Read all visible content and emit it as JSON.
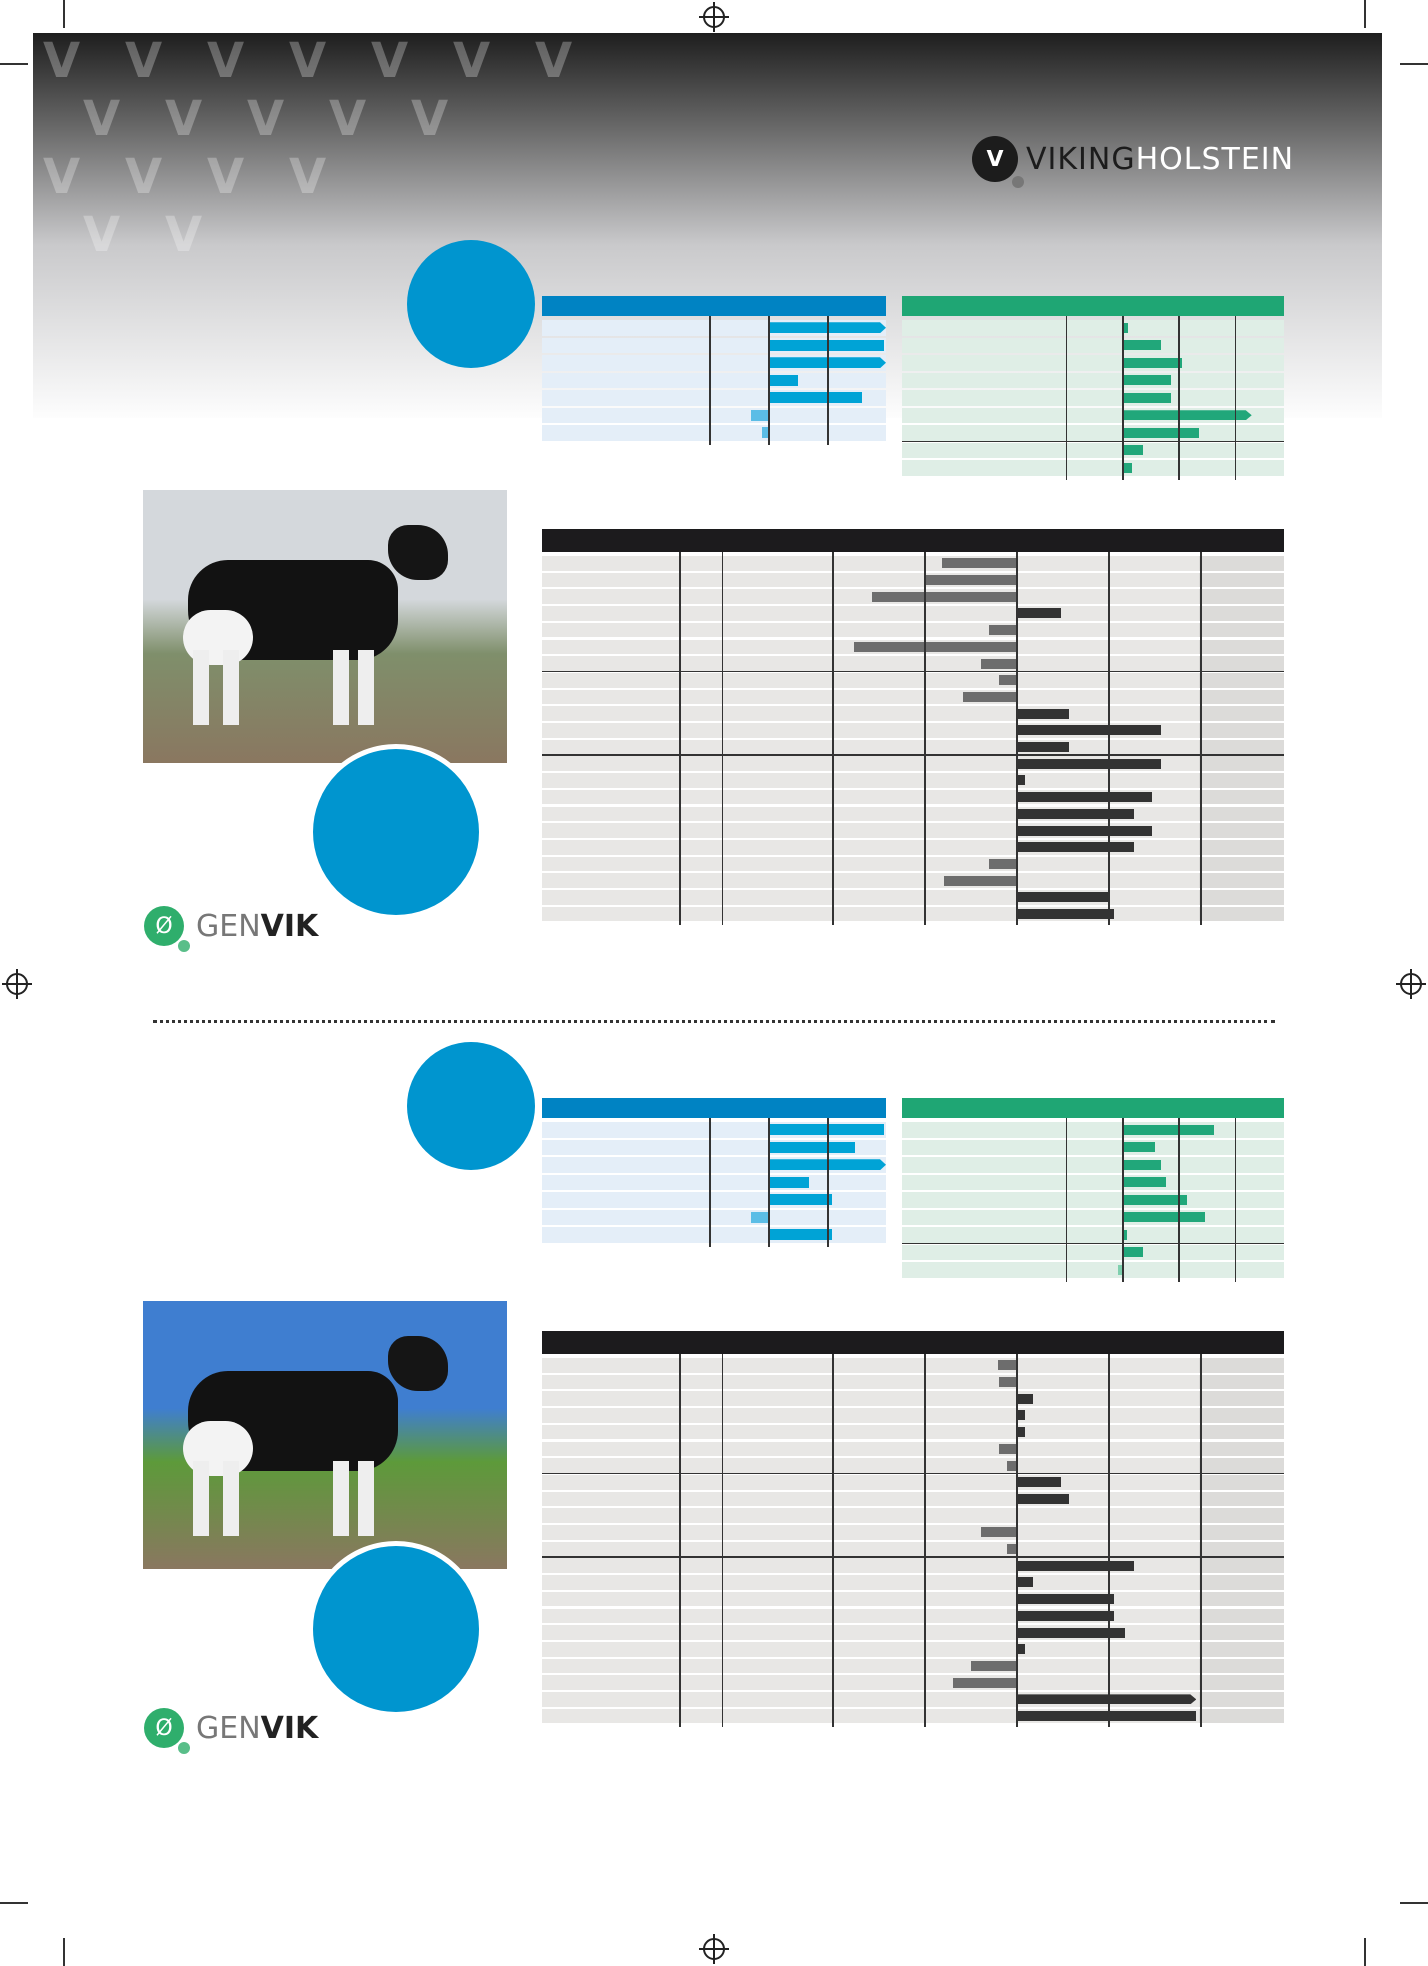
{
  "brand": {
    "logo_part1": "VIKING",
    "logo_part2": "HOLSTEIN",
    "genomic_logo_part1": "GEN",
    "genomic_logo_part2": "VIK"
  },
  "colors": {
    "blue_accent": "#0095cf",
    "blue_header": "#0083c3",
    "blue_bar": "#00a3d6",
    "green_header": "#1fa674",
    "green_bar": "#21a77a",
    "dark_header": "#1c1b1d",
    "dark_bar": "#333333",
    "negative_bar": "#6d6d6d",
    "background_top": "#1e1e1e"
  },
  "chart_data": [
    {
      "id": "bull1-production",
      "type": "bar",
      "orientation": "horizontal",
      "series_color": "#00a3d6",
      "values": [
        2.0,
        1.96,
        2.0,
        0.5,
        1.6,
        -0.28,
        -0.1
      ],
      "clipped_rows": [
        0,
        2
      ],
      "xlim": [
        -3.8,
        2.0
      ],
      "gridlines": [
        -1,
        0,
        1
      ],
      "grid": true
    },
    {
      "id": "bull1-functional",
      "type": "bar",
      "orientation": "horizontal",
      "series_color": "#21a77a",
      "values": [
        0.1,
        0.7,
        1.07,
        0.87,
        0.87,
        2.3,
        1.36,
        0.38,
        0.18
      ],
      "clipped_rows": [
        5
      ],
      "xlim": [
        -3.2,
        2.9
      ],
      "gridlines": [
        -1,
        0,
        1,
        2
      ],
      "grid": true,
      "group_breaks": [
        7
      ]
    },
    {
      "id": "bull1-conformation",
      "type": "bar",
      "orientation": "horizontal",
      "series_color": "#333333",
      "values": [
        -0.8,
        -1.0,
        -1.56,
        0.49,
        -0.29,
        -1.76,
        -0.38,
        -0.19,
        -0.58,
        0.58,
        1.58,
        0.58,
        1.58,
        0.1,
        1.48,
        1.28,
        1.48,
        1.28,
        -0.29,
        -0.78,
        1.0,
        1.07
      ],
      "clipped_rows": [],
      "xlim": [
        -5.1,
        2.9
      ],
      "gridlines": [
        -3.66,
        -3.2,
        -2,
        -1,
        0,
        1,
        2
      ],
      "grid": true,
      "group_breaks": [
        7,
        12
      ]
    },
    {
      "id": "bull2-production",
      "type": "bar",
      "orientation": "horizontal",
      "series_color": "#00a3d6",
      "values": [
        1.96,
        1.47,
        2.0,
        0.7,
        1.09,
        -0.28,
        1.09
      ],
      "clipped_rows": [
        2
      ],
      "xlim": [
        -3.8,
        2.0
      ],
      "gridlines": [
        -1,
        0,
        1
      ],
      "grid": true
    },
    {
      "id": "bull2-functional",
      "type": "bar",
      "orientation": "horizontal",
      "series_color": "#21a77a",
      "values": [
        1.64,
        0.58,
        0.69,
        0.78,
        1.16,
        1.47,
        0.09,
        0.38,
        -0.07
      ],
      "clipped_rows": [],
      "xlim": [
        -3.2,
        2.9
      ],
      "gridlines": [
        -1,
        0,
        1,
        2
      ],
      "grid": true,
      "group_breaks": [
        7
      ]
    },
    {
      "id": "bull2-conformation",
      "type": "bar",
      "orientation": "horizontal",
      "series_color": "#333333",
      "values": [
        -0.2,
        -0.19,
        0.19,
        0.1,
        0.1,
        -0.19,
        -0.1,
        0.49,
        0.58,
        0,
        -0.38,
        -0.1,
        1.28,
        0.19,
        1.07,
        1.07,
        1.18,
        0.1,
        -0.49,
        -0.68,
        1.96,
        1.96
      ],
      "clipped_rows": [
        20
      ],
      "xlim": [
        -5.1,
        2.9
      ],
      "gridlines": [
        -3.66,
        -3.2,
        -2,
        -1,
        0,
        1,
        2
      ],
      "grid": true,
      "group_breaks": [
        7,
        12
      ]
    }
  ]
}
